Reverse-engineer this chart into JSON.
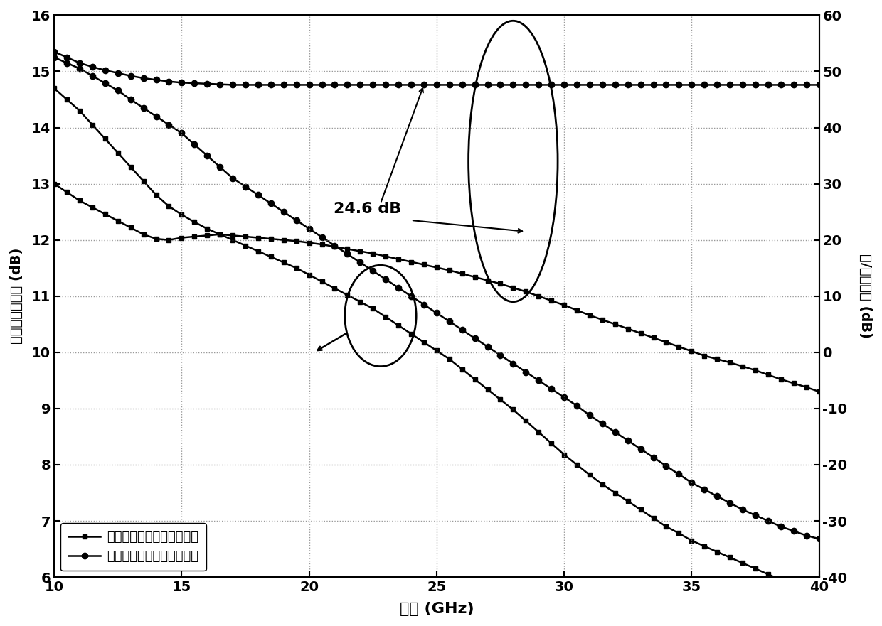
{
  "freq": [
    10,
    10.5,
    11,
    11.5,
    12,
    12.5,
    13,
    13.5,
    14,
    14.5,
    15,
    15.5,
    16,
    16.5,
    17,
    17.5,
    18,
    18.5,
    19,
    19.5,
    20,
    20.5,
    21,
    21.5,
    22,
    22.5,
    23,
    23.5,
    24,
    24.5,
    25,
    25.5,
    26,
    26.5,
    27,
    27.5,
    28,
    28.5,
    29,
    29.5,
    30,
    30.5,
    31,
    31.5,
    32,
    32.5,
    33,
    33.5,
    34,
    34.5,
    35,
    35.5,
    36,
    36.5,
    37,
    37.5,
    38,
    38.5,
    39,
    39.5,
    40
  ],
  "trad_gain": [
    14.7,
    14.5,
    14.3,
    14.05,
    13.8,
    13.55,
    13.3,
    13.05,
    12.8,
    12.6,
    12.45,
    12.32,
    12.2,
    12.1,
    12.0,
    11.9,
    11.8,
    11.7,
    11.6,
    11.5,
    11.38,
    11.26,
    11.14,
    11.02,
    10.9,
    10.78,
    10.63,
    10.48,
    10.33,
    10.18,
    10.03,
    9.88,
    9.7,
    9.52,
    9.34,
    9.16,
    8.98,
    8.78,
    8.58,
    8.38,
    8.18,
    8.0,
    7.82,
    7.65,
    7.5,
    7.35,
    7.2,
    7.05,
    6.9,
    6.78,
    6.65,
    6.55,
    6.45,
    6.35,
    6.25,
    6.15,
    6.05,
    5.95,
    5.85,
    5.75,
    5.65
  ],
  "impr_gain": [
    15.25,
    15.15,
    15.05,
    14.92,
    14.79,
    14.66,
    14.5,
    14.35,
    14.2,
    14.05,
    13.9,
    13.7,
    13.5,
    13.3,
    13.1,
    12.95,
    12.8,
    12.65,
    12.5,
    12.35,
    12.2,
    12.05,
    11.9,
    11.75,
    11.6,
    11.45,
    11.3,
    11.15,
    11.0,
    10.85,
    10.7,
    10.55,
    10.4,
    10.25,
    10.1,
    9.95,
    9.8,
    9.65,
    9.5,
    9.35,
    9.2,
    9.05,
    8.88,
    8.73,
    8.58,
    8.43,
    8.28,
    8.13,
    7.98,
    7.83,
    7.68,
    7.56,
    7.44,
    7.32,
    7.2,
    7.1,
    7.0,
    6.9,
    6.82,
    6.74,
    6.68
  ],
  "trad_isol_right": [
    30.0,
    28.5,
    27.0,
    25.8,
    24.6,
    23.4,
    22.2,
    21.0,
    20.2,
    20.0,
    20.4,
    20.6,
    20.8,
    21.0,
    20.8,
    20.6,
    20.4,
    20.2,
    20.0,
    19.8,
    19.5,
    19.2,
    18.8,
    18.4,
    18.0,
    17.6,
    17.1,
    16.6,
    16.1,
    15.6,
    15.1,
    14.6,
    14.0,
    13.4,
    12.8,
    12.2,
    11.5,
    10.8,
    10.0,
    9.2,
    8.4,
    7.5,
    6.6,
    5.8,
    5.0,
    4.2,
    3.4,
    2.6,
    1.8,
    1.0,
    0.2,
    -0.6,
    -1.2,
    -1.8,
    -2.5,
    -3.2,
    -4.0,
    -4.8,
    -5.5,
    -6.2,
    -7.0
  ],
  "impr_isol_right": [
    53.5,
    52.5,
    51.5,
    50.8,
    50.2,
    49.7,
    49.2,
    48.8,
    48.5,
    48.2,
    48.0,
    47.9,
    47.8,
    47.7,
    47.6,
    47.6,
    47.6,
    47.6,
    47.6,
    47.6,
    47.6,
    47.6,
    47.6,
    47.6,
    47.6,
    47.6,
    47.6,
    47.6,
    47.6,
    47.6,
    47.6,
    47.6,
    47.6,
    47.6,
    47.6,
    47.6,
    47.6,
    47.6,
    47.6,
    47.6,
    47.6,
    47.6,
    47.6,
    47.6,
    47.6,
    47.6,
    47.6,
    47.6,
    47.6,
    47.6,
    47.6,
    47.6,
    47.6,
    47.6,
    47.6,
    47.6,
    47.6,
    47.6,
    47.6,
    47.6,
    47.6
  ],
  "left_ylabel": "最大可实现增益 (dB)",
  "right_ylabel": "开/关隔离度 (dB)",
  "xlabel": "频率 (GHz)",
  "legend1": "传统型层叠共栊级开关电路",
  "legend2": "改进型层叠共栊级开关电路",
  "annotation": "24.6 dB",
  "xlim": [
    10,
    40
  ],
  "ylim_left": [
    6,
    16
  ],
  "ylim_right": [
    -40,
    60
  ],
  "xticks": [
    10,
    15,
    20,
    25,
    30,
    35,
    40
  ],
  "yticks_left": [
    6,
    7,
    8,
    9,
    10,
    11,
    12,
    13,
    14,
    15,
    16
  ],
  "yticks_right": [
    -40,
    -30,
    -20,
    -10,
    0,
    10,
    20,
    30,
    40,
    50,
    60
  ]
}
